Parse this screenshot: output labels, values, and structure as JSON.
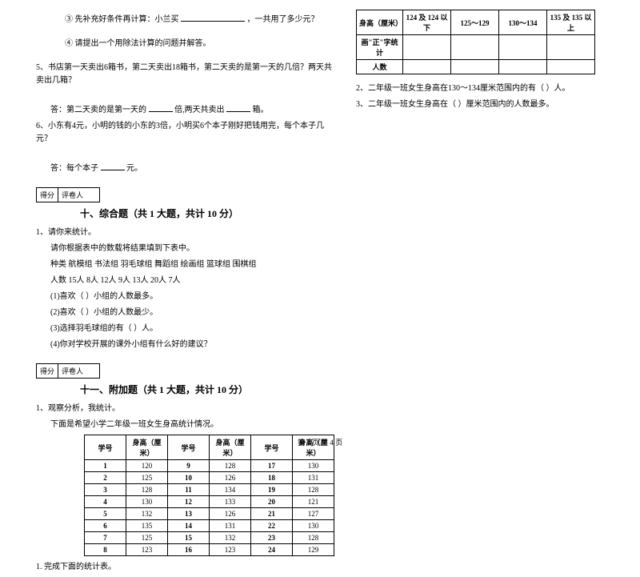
{
  "left": {
    "q3": "③ 先补充好条件再计算：小兰买",
    "q3_suffix": "，一共用了多少元？",
    "q4": "④ 请提出一个用除法计算的问题并解答。",
    "q5": "5、书店第一天卖出6箱书，第二天卖出18箱书，第二天卖的是第一天的几倍？两天共卖出几箱？",
    "q5_ans_a": "答：第二天卖的是第一天的",
    "q5_ans_b": "倍,两天共卖出",
    "q5_ans_c": "箱。",
    "q6": "6、小东有4元，小明的钱的小东的3倍，小明买6个本子刚好把钱用完，每个本子几元？",
    "q6_ans_a": "答：每个本子",
    "q6_ans_b": "元。",
    "score_label1": "得分",
    "score_label2": "评卷人",
    "section10": "十、综合题（共 1 大题，共计 10 分）",
    "p1_title": "1、请你来统计。",
    "p1_line1": "请你根据表中的数载将结果填到下表中。",
    "p1_line2": "种类 航模组 书法组 羽毛球组 舞蹈组 绘画组 篮球组 围棋组",
    "p1_line3": "人数   15人   8人   12人   9人   13人   20人   7人",
    "p1_sub1": "(1)喜欢（    ）小组的人数最多。",
    "p1_sub2": "(2)喜欢（    ）小组的人数最少。",
    "p1_sub3": "(3)选择羽毛球组的有（   ）人。",
    "p1_sub4": "(4)你对学校开展的课外小组有什么好的建议？",
    "section11": "十一、附加题（共 1 大题，共计 10 分）",
    "p11_title": "1、观察分析，我统计。",
    "p11_sub": "下面是希望小学二年级一班女生身高统计情况。",
    "tbl_h": {
      "cols": [
        "学号",
        "身高（厘米）",
        "学号",
        "身高（厘米）",
        "学号",
        "身高（厘米）"
      ],
      "rows": [
        [
          "1",
          "120",
          "9",
          "128",
          "17",
          "130"
        ],
        [
          "2",
          "125",
          "10",
          "126",
          "18",
          "131"
        ],
        [
          "3",
          "128",
          "11",
          "134",
          "19",
          "128"
        ],
        [
          "4",
          "130",
          "12",
          "133",
          "20",
          "121"
        ],
        [
          "5",
          "132",
          "13",
          "126",
          "21",
          "127"
        ],
        [
          "6",
          "135",
          "14",
          "131",
          "22",
          "130"
        ],
        [
          "7",
          "125",
          "15",
          "132",
          "23",
          "128"
        ],
        [
          "8",
          "123",
          "16",
          "123",
          "24",
          "129"
        ]
      ]
    },
    "p11_1": "1. 完成下面的统计表。"
  },
  "right": {
    "tbl_s": {
      "r1": [
        "身高（厘米）",
        "124 及 124 以下",
        "125～129",
        "130～134",
        "135 及 135 以上"
      ],
      "r2": [
        "画\"正\"字统计",
        "",
        "",
        "",
        ""
      ],
      "r3": [
        "人数",
        "",
        "",
        "",
        ""
      ]
    },
    "q2": "2、二年级一班女生身高在130～134厘米范围内的有（    ）人。",
    "q3": "3、二年级一班女生身高在（         ）厘米范围内的人数最多。"
  },
  "footer": "第 3 页 共 4 页"
}
